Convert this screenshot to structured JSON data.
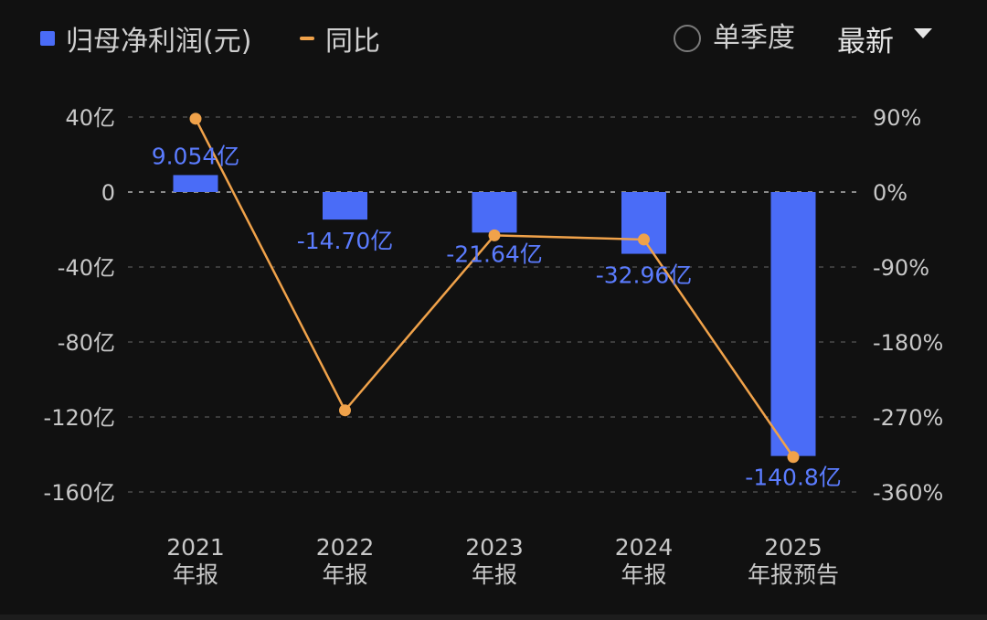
{
  "legend": {
    "bar_label": "归母净利润(元)",
    "line_label": "同比"
  },
  "controls": {
    "single_quarter_label": "单季度",
    "period_select": "最新"
  },
  "colors": {
    "bar": "#4a6cf7",
    "line": "#f0a24a",
    "bar_label_text": "#5b7cff",
    "grid": "#4a4a4a",
    "axis_text": "#c8c8c8"
  },
  "chart_data": {
    "type": "bar",
    "categories": [
      [
        "2021",
        "年报"
      ],
      [
        "2022",
        "年报"
      ],
      [
        "2023",
        "年报"
      ],
      [
        "2024",
        "年报"
      ],
      [
        "2025",
        "年报预告"
      ]
    ],
    "series": [
      {
        "name": "归母净利润(元)",
        "type": "bar",
        "axis": "left",
        "values": [
          9.054,
          -14.7,
          -21.64,
          -32.96,
          -140.8
        ],
        "data_labels": [
          "9.054亿",
          "-14.70亿",
          "-21.64亿",
          "-32.96亿",
          "-140.8亿"
        ]
      },
      {
        "name": "同比",
        "type": "line",
        "axis": "right",
        "values": [
          88,
          -262,
          -52,
          -57,
          -318
        ]
      }
    ],
    "left_axis": {
      "ticks": [
        40,
        0,
        -40,
        -80,
        -120,
        -160
      ],
      "tick_labels": [
        "40亿",
        "0",
        "-40亿",
        "-80亿",
        "-120亿",
        "-160亿"
      ],
      "ylim": [
        -160,
        40
      ]
    },
    "right_axis": {
      "ticks": [
        90,
        0,
        -90,
        -180,
        -270,
        -360
      ],
      "tick_labels": [
        "90%",
        "0%",
        "-90%",
        "-180%",
        "-270%",
        "-360%"
      ],
      "ylim": [
        -360,
        90
      ]
    },
    "grid": true
  }
}
